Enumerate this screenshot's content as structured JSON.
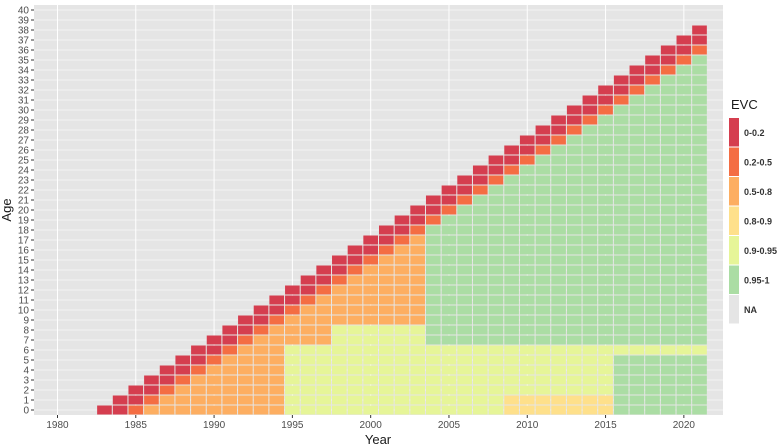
{
  "chart_data": {
    "type": "heatmap",
    "title": "",
    "xlabel": "Year",
    "ylabel": "Age",
    "xlim": [
      1979,
      2022
    ],
    "ylim": [
      0,
      40
    ],
    "x_ticks": [
      "1980",
      "1985",
      "1990",
      "1995",
      "2000",
      "2005",
      "2010",
      "2015",
      "2020"
    ],
    "y_ticks": [
      "0",
      "1",
      "2",
      "3",
      "4",
      "5",
      "6",
      "7",
      "8",
      "9",
      "10",
      "11",
      "12",
      "13",
      "14",
      "15",
      "16",
      "17",
      "18",
      "19",
      "20",
      "21",
      "22",
      "23",
      "24",
      "25",
      "26",
      "27",
      "28",
      "29",
      "30",
      "31",
      "32",
      "33",
      "34",
      "35",
      "36",
      "37",
      "38",
      "39",
      "40"
    ],
    "x_start": 1983,
    "x_end": 2021,
    "cohort_first_year": 1983,
    "legend": {
      "title": "EVC",
      "position": "right",
      "entries": [
        {
          "label": "0-0.2",
          "color": "#d53e4f"
        },
        {
          "label": "0.2-0.5",
          "color": "#f46d43"
        },
        {
          "label": "0.5-0.8",
          "color": "#fdae61"
        },
        {
          "label": "0.8-0.9",
          "color": "#fee08b"
        },
        {
          "label": "0.9-0.95",
          "color": "#e6f598"
        },
        {
          "label": "0.95-1",
          "color": "#abdda4"
        },
        {
          "label": "NA",
          "color": "#e5e5e5"
        }
      ]
    },
    "cell_rule": "Cells exist for age <= year - 1983. Ages near the diagonal have low EVC (0-0.2, 0.2-0.5), older cohorts higher; ages 7+ from 2004 onward are 0.95-1."
  }
}
